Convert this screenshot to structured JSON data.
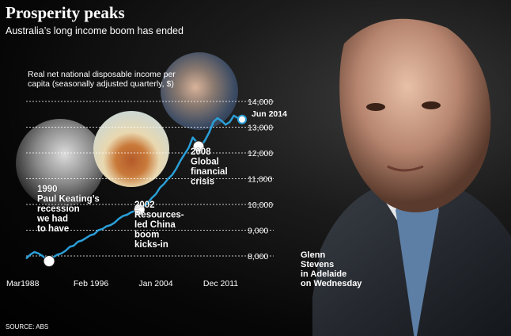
{
  "headline": "Prosperity peaks",
  "subheadline": "Australia’s long income boom has ended",
  "source": "SOURCE: ABS",
  "photo_caption": "Glenn\nStevens\nin Adelaide\non Wednesday",
  "colors": {
    "line": "#2a9fd8",
    "marker_fill": "#ffffff",
    "grid": "#ffffff",
    "text": "#ffffff"
  },
  "chart_data": {
    "type": "line",
    "title": "",
    "ylabel": "Real net national disposable income per capita (seasonally adjusted quarterly, $)",
    "ylim": [
      7500,
      14200
    ],
    "yticks": [
      "8,000",
      "9,000",
      "10,000",
      "11,000",
      "12,000",
      "13,000",
      "14,000"
    ],
    "ytick_values": [
      8000,
      9000,
      10000,
      11000,
      12000,
      13000,
      14000
    ],
    "xticks": [
      "Mar1988",
      "Feb 1996",
      "Jan 2004",
      "Dec 2011"
    ],
    "xtick_values": [
      1988.2,
      1996.1,
      2004.0,
      2011.9
    ],
    "xlim": [
      1988.2,
      2014.5
    ],
    "end_label": "Jun 2014",
    "grid": true,
    "x": [
      1988.2,
      1988.7,
      1989.2,
      1989.7,
      1990.2,
      1990.7,
      1991.0,
      1991.5,
      1992.0,
      1992.5,
      1993.0,
      1993.5,
      1994.0,
      1994.5,
      1995.0,
      1995.5,
      1996.0,
      1996.5,
      1997.0,
      1997.5,
      1998.0,
      1998.5,
      1999.0,
      1999.5,
      2000.0,
      2000.5,
      2001.0,
      2001.5,
      2002.0,
      2002.5,
      2003.0,
      2003.5,
      2004.0,
      2004.5,
      2005.0,
      2005.5,
      2006.0,
      2006.5,
      2007.0,
      2007.5,
      2008.0,
      2008.5,
      2008.9,
      2009.2,
      2009.6,
      2010.0,
      2010.5,
      2011.0,
      2011.5,
      2012.0,
      2012.5,
      2013.0,
      2013.5,
      2014.0,
      2014.5
    ],
    "y": [
      7900,
      8050,
      8150,
      8100,
      8000,
      7850,
      7800,
      7950,
      8050,
      8100,
      8200,
      8350,
      8400,
      8550,
      8600,
      8700,
      8800,
      8850,
      9000,
      9050,
      9150,
      9200,
      9300,
      9450,
      9550,
      9600,
      9700,
      9750,
      9800,
      9900,
      10050,
      10250,
      10400,
      10650,
      10800,
      11000,
      11150,
      11400,
      11700,
      11950,
      12200,
      12600,
      12450,
      12250,
      12300,
      12500,
      12800,
      13200,
      13350,
      13250,
      13100,
      13200,
      13450,
      13350,
      13300
    ],
    "annotations": [
      {
        "label": "1990\nPaul Keating’s\nrecession\nwe had\nto have",
        "x": 1991.0,
        "y": 7800
      },
      {
        "label": "2002\nResources-\nled China\nboom\nkicks-in",
        "x": 2002.0,
        "y": 9800
      },
      {
        "label": "2008\nGlobal\nfinancial\ncrisis",
        "x": 2009.2,
        "y": 12250
      }
    ]
  }
}
